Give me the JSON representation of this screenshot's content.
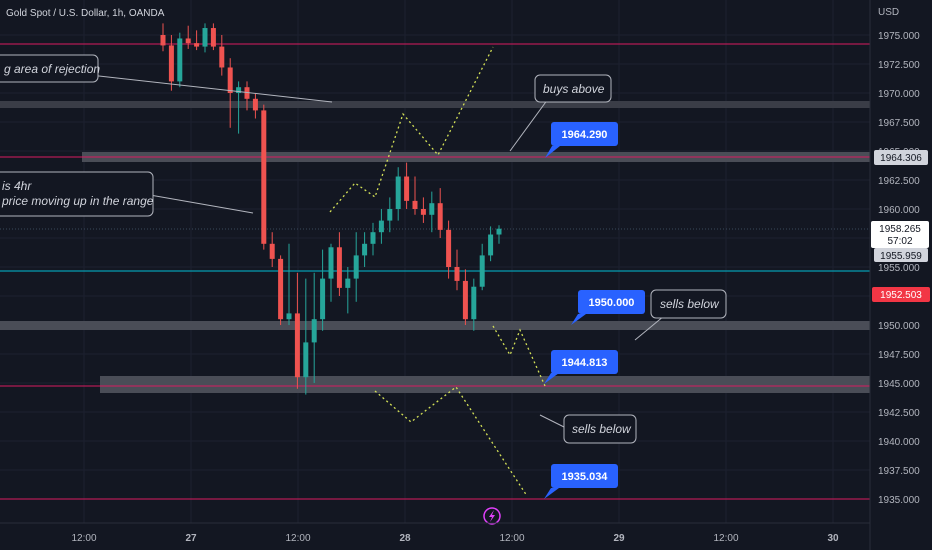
{
  "header": {
    "title": "Gold Spot / U.S. Dollar, 1h, OANDA"
  },
  "currency": "USD",
  "price_labels": {
    "resistance": "1964.306",
    "current": "1958.265",
    "countdown": "57:02",
    "blue_line": "1955.959",
    "red_line": "1952.503"
  },
  "callouts": {
    "rejection": "g area of rejection",
    "buys_above": "buys above",
    "four_hr_line1": "is 4hr",
    "four_hr_line2": "price moving up in the range",
    "sells_below_1": "sells below",
    "sells_below_2": "sells below"
  },
  "tags": [
    "1964.290",
    "1950.000",
    "1944.813",
    "1935.034"
  ],
  "colors": {
    "background": "#131722",
    "bull": "#26a69a",
    "bear": "#ef5350",
    "tag_blue": "#2962ff",
    "pink_line": "#d81b60",
    "cyan_line": "#00bcd4",
    "red_label": "#f23645",
    "projection": "#d4e157"
  },
  "chart_data": {
    "type": "candlestick",
    "title": "Gold Spot / U.S. Dollar, 1h, OANDA",
    "y_unit": "USD",
    "y_ticks": [
      1975.0,
      1972.5,
      1970.0,
      1967.5,
      1965.0,
      1962.5,
      1960.0,
      1957.5,
      1955.0,
      1952.5,
      1950.0,
      1947.5,
      1945.0,
      1942.5,
      1940.0,
      1937.5,
      1935.0
    ],
    "x_ticks": [
      "12:00",
      "27",
      "12:00",
      "28",
      "12:00",
      "29",
      "12:00",
      "30"
    ],
    "candles": [
      {
        "o": 1975.0,
        "h": 1976.0,
        "l": 1973.6,
        "c": 1974.1
      },
      {
        "o": 1974.1,
        "h": 1975.0,
        "l": 1970.2,
        "c": 1971.0
      },
      {
        "o": 1971.0,
        "h": 1975.2,
        "l": 1970.5,
        "c": 1974.7
      },
      {
        "o": 1974.7,
        "h": 1975.8,
        "l": 1973.8,
        "c": 1974.3
      },
      {
        "o": 1974.3,
        "h": 1975.4,
        "l": 1973.7,
        "c": 1974.0
      },
      {
        "o": 1974.0,
        "h": 1976.0,
        "l": 1973.5,
        "c": 1975.6
      },
      {
        "o": 1975.6,
        "h": 1976.0,
        "l": 1973.7,
        "c": 1974.0
      },
      {
        "o": 1974.0,
        "h": 1975.0,
        "l": 1971.5,
        "c": 1972.2
      },
      {
        "o": 1972.2,
        "h": 1973.0,
        "l": 1967.0,
        "c": 1970.0
      },
      {
        "o": 1970.0,
        "h": 1971.0,
        "l": 1966.5,
        "c": 1970.5
      },
      {
        "o": 1970.5,
        "h": 1971.0,
        "l": 1968.5,
        "c": 1969.5
      },
      {
        "o": 1969.5,
        "h": 1970.0,
        "l": 1967.8,
        "c": 1968.5
      },
      {
        "o": 1968.5,
        "h": 1969.0,
        "l": 1956.5,
        "c": 1957.0
      },
      {
        "o": 1957.0,
        "h": 1958.0,
        "l": 1955.0,
        "c": 1955.7
      },
      {
        "o": 1955.7,
        "h": 1956.0,
        "l": 1950.0,
        "c": 1950.5
      },
      {
        "o": 1950.5,
        "h": 1957.0,
        "l": 1950.0,
        "c": 1951.0
      },
      {
        "o": 1951.0,
        "h": 1954.5,
        "l": 1944.5,
        "c": 1945.5
      },
      {
        "o": 1945.5,
        "h": 1954.0,
        "l": 1944.0,
        "c": 1948.5
      },
      {
        "o": 1948.5,
        "h": 1954.5,
        "l": 1945.0,
        "c": 1950.5
      },
      {
        "o": 1950.5,
        "h": 1956.5,
        "l": 1949.5,
        "c": 1954.0
      },
      {
        "o": 1954.0,
        "h": 1957.0,
        "l": 1952.0,
        "c": 1956.7
      },
      {
        "o": 1956.7,
        "h": 1958.0,
        "l": 1952.5,
        "c": 1953.2
      },
      {
        "o": 1953.2,
        "h": 1955.0,
        "l": 1951.0,
        "c": 1954.0
      },
      {
        "o": 1954.0,
        "h": 1958.0,
        "l": 1952.0,
        "c": 1956.0
      },
      {
        "o": 1956.0,
        "h": 1958.0,
        "l": 1955.0,
        "c": 1957.0
      },
      {
        "o": 1957.0,
        "h": 1958.8,
        "l": 1956.0,
        "c": 1958.0
      },
      {
        "o": 1958.0,
        "h": 1960.0,
        "l": 1957.0,
        "c": 1959.0
      },
      {
        "o": 1959.0,
        "h": 1961.0,
        "l": 1958.0,
        "c": 1960.0
      },
      {
        "o": 1960.0,
        "h": 1963.6,
        "l": 1959.0,
        "c": 1962.8
      },
      {
        "o": 1962.8,
        "h": 1964.0,
        "l": 1960.0,
        "c": 1960.7
      },
      {
        "o": 1960.7,
        "h": 1962.8,
        "l": 1959.5,
        "c": 1960.0
      },
      {
        "o": 1960.0,
        "h": 1961.0,
        "l": 1958.8,
        "c": 1959.5
      },
      {
        "o": 1959.5,
        "h": 1961.5,
        "l": 1958.0,
        "c": 1960.5
      },
      {
        "o": 1960.5,
        "h": 1961.8,
        "l": 1957.5,
        "c": 1958.2
      },
      {
        "o": 1958.2,
        "h": 1959.0,
        "l": 1954.0,
        "c": 1955.0
      },
      {
        "o": 1955.0,
        "h": 1956.5,
        "l": 1953.0,
        "c": 1953.8
      },
      {
        "o": 1953.8,
        "h": 1954.8,
        "l": 1950.0,
        "c": 1950.5
      },
      {
        "o": 1950.5,
        "h": 1954.0,
        "l": 1949.5,
        "c": 1953.3
      },
      {
        "o": 1953.3,
        "h": 1957.0,
        "l": 1953.0,
        "c": 1956.0
      },
      {
        "o": 1956.0,
        "h": 1958.5,
        "l": 1955.5,
        "c": 1957.8
      },
      {
        "o": 1957.8,
        "h": 1958.6,
        "l": 1957.0,
        "c": 1958.3
      }
    ]
  }
}
